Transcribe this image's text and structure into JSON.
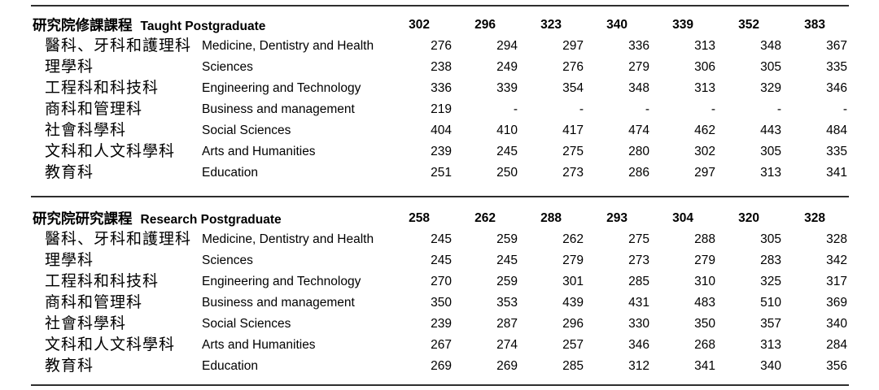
{
  "table": {
    "sections": [
      {
        "title_zh": "研究院修課課程",
        "title_en": "Taught Postgraduate",
        "totals": [
          "302",
          "296",
          "323",
          "340",
          "339",
          "352",
          "383"
        ],
        "rows": [
          {
            "zh": "醫科、牙科和護理科",
            "en": "Medicine, Dentistry and Health",
            "values": [
              "276",
              "294",
              "297",
              "336",
              "313",
              "348",
              "367"
            ]
          },
          {
            "zh": "理學科",
            "en": "Sciences",
            "values": [
              "238",
              "249",
              "276",
              "279",
              "306",
              "305",
              "335"
            ]
          },
          {
            "zh": "工程科和科技科",
            "en": "Engineering and Technology",
            "values": [
              "336",
              "339",
              "354",
              "348",
              "313",
              "329",
              "346"
            ]
          },
          {
            "zh": "商科和管理科",
            "en": "Business and management",
            "values": [
              "219",
              "-",
              "-",
              "-",
              "-",
              "-",
              "-"
            ]
          },
          {
            "zh": "社會科學科",
            "en": "Social Sciences",
            "values": [
              "404",
              "410",
              "417",
              "474",
              "462",
              "443",
              "484"
            ]
          },
          {
            "zh": "文科和人文科學科",
            "en": "Arts and Humanities",
            "values": [
              "239",
              "245",
              "275",
              "280",
              "302",
              "305",
              "335"
            ]
          },
          {
            "zh": "教育科",
            "en": "Education",
            "values": [
              "251",
              "250",
              "273",
              "286",
              "297",
              "313",
              "341"
            ]
          }
        ]
      },
      {
        "title_zh": "研究院研究課程",
        "title_en": "Research Postgraduate",
        "totals": [
          "258",
          "262",
          "288",
          "293",
          "304",
          "320",
          "328"
        ],
        "rows": [
          {
            "zh": "醫科、牙科和護理科",
            "en": "Medicine, Dentistry and Health",
            "values": [
              "245",
              "259",
              "262",
              "275",
              "288",
              "305",
              "328"
            ]
          },
          {
            "zh": "理學科",
            "en": "Sciences",
            "values": [
              "245",
              "245",
              "279",
              "273",
              "279",
              "283",
              "342"
            ]
          },
          {
            "zh": "工程科和科技科",
            "en": "Engineering and Technology",
            "values": [
              "270",
              "259",
              "301",
              "285",
              "310",
              "325",
              "317"
            ]
          },
          {
            "zh": "商科和管理科",
            "en": "Business and management",
            "values": [
              "350",
              "353",
              "439",
              "431",
              "483",
              "510",
              "369"
            ]
          },
          {
            "zh": "社會科學科",
            "en": "Social Sciences",
            "values": [
              "239",
              "287",
              "296",
              "330",
              "350",
              "357",
              "340"
            ]
          },
          {
            "zh": "文科和人文科學科",
            "en": "Arts and Humanities",
            "values": [
              "267",
              "274",
              "257",
              "346",
              "268",
              "313",
              "284"
            ]
          },
          {
            "zh": "教育科",
            "en": "Education",
            "values": [
              "269",
              "269",
              "285",
              "312",
              "341",
              "340",
              "356"
            ]
          }
        ]
      }
    ],
    "rule_color": "#2e2e2e",
    "text_color": "#000000"
  }
}
